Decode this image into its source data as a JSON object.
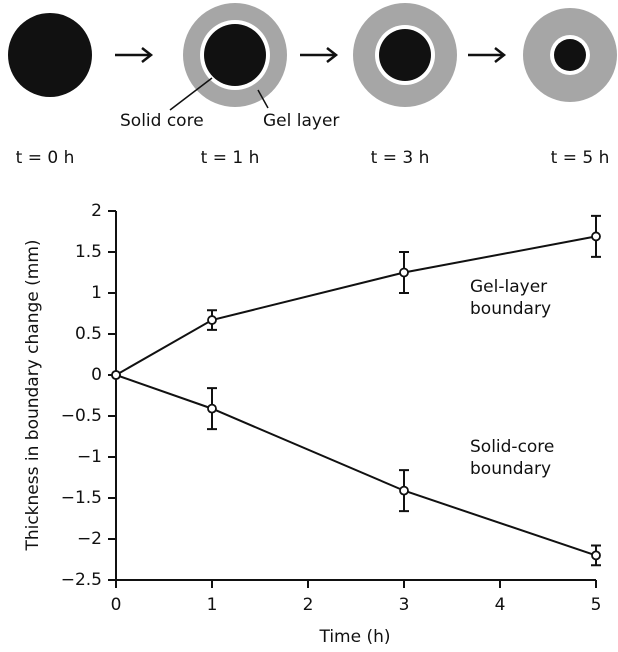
{
  "diagram": {
    "labels": [
      "Solid core",
      "Gel layer"
    ],
    "times": [
      "t = 0 h",
      "t = 1 h",
      "t = 3 h",
      "t = 5 h"
    ]
  },
  "chart_data": {
    "type": "line",
    "x_label": "Time (h)",
    "y_label": "Thickness in boundary change (mm)",
    "x": [
      0,
      1,
      3,
      5
    ],
    "xlim": [
      0,
      5
    ],
    "xticks": [
      0,
      1,
      2,
      3,
      4,
      5
    ],
    "ylim": [
      -2.5,
      2
    ],
    "yticks": [
      2,
      1.5,
      1,
      0.5,
      0,
      {
        "value": -0.5,
        "label": "−0.5"
      },
      {
        "value": -1,
        "label": "−1"
      },
      {
        "value": -1.5,
        "label": "−1.5"
      },
      {
        "value": -2,
        "label": "−2"
      },
      {
        "value": -2.5,
        "label": "−2.5"
      }
    ],
    "series": [
      {
        "name": "Gel-layer boundary",
        "color": "#111111",
        "values": [
          0,
          0.67,
          1.25,
          1.69
        ],
        "errors": [
          null,
          0.12,
          0.25,
          0.25
        ]
      },
      {
        "name": "Solid-core boundary",
        "color": "#111111",
        "values": [
          0,
          -0.41,
          -1.41,
          -2.2
        ],
        "errors": [
          null,
          0.25,
          0.25,
          0.12
        ]
      }
    ]
  }
}
